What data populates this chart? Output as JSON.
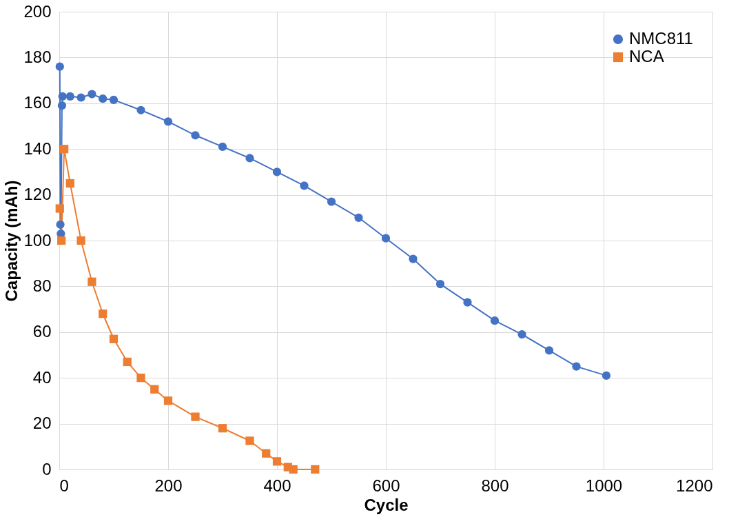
{
  "chart_data": {
    "type": "line",
    "xlabel": "Cycle",
    "ylabel": "Capacity (mAh)",
    "xlim": [
      0,
      1200
    ],
    "xticks": [
      0,
      200,
      400,
      600,
      800,
      1000,
      1200
    ],
    "ylim": [
      0,
      200
    ],
    "yticks": [
      0,
      20,
      40,
      60,
      80,
      100,
      120,
      140,
      160,
      180,
      200
    ],
    "grid": true,
    "legend": "top right",
    "series": [
      {
        "name": "NMC811",
        "color": "#4472c4",
        "marker": "circle",
        "x": [
          1,
          2,
          3,
          5,
          6,
          20,
          40,
          60,
          80,
          100,
          150,
          200,
          250,
          300,
          350,
          400,
          450,
          500,
          550,
          600,
          650,
          700,
          750,
          800,
          850,
          900,
          950,
          1005
        ],
        "values": [
          176,
          107,
          103,
          159,
          163,
          163,
          162.5,
          164,
          162,
          161.5,
          157,
          152,
          146,
          141,
          136,
          130,
          124,
          117,
          110,
          101,
          92,
          81,
          73,
          65,
          59,
          52,
          45,
          41
        ]
      },
      {
        "name": "NCA",
        "color": "#ed7d31",
        "marker": "square",
        "x": [
          1,
          4,
          9,
          20,
          40,
          60,
          80,
          100,
          125,
          150,
          175,
          200,
          250,
          300,
          350,
          380,
          400,
          420,
          430,
          470
        ],
        "values": [
          114,
          100,
          140,
          125,
          100,
          82,
          68,
          57,
          47,
          40,
          35,
          30,
          23,
          18,
          12.5,
          7,
          3.5,
          1,
          0,
          0
        ]
      }
    ]
  }
}
